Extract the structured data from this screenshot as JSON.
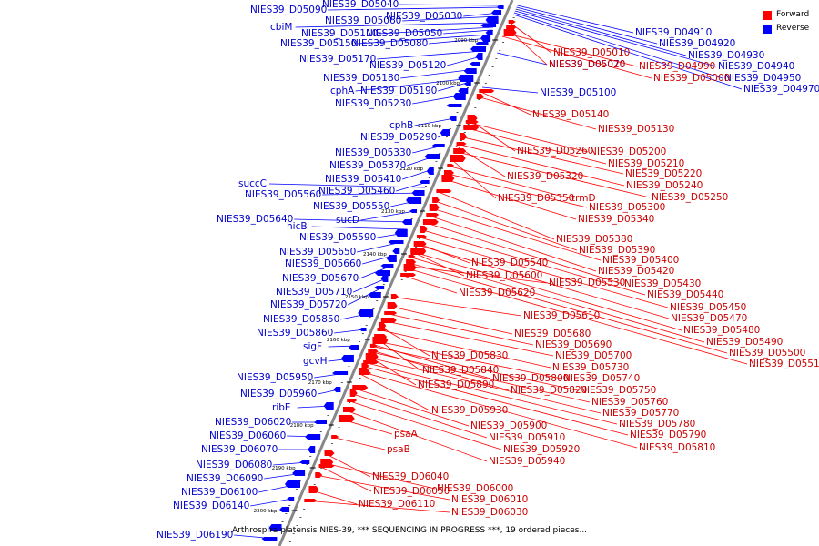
{
  "legend": {
    "forward": "Forward",
    "reverse": "Reverse",
    "forward_color": "#ff0000",
    "reverse_color": "#0000ff"
  },
  "caption": "Arthrospira platensis NIES-39, *** SEQUENCING IN PROGRESS ***, 19 ordered pieces...",
  "scale_marks": [
    "2090 kbp",
    "2100 kbp",
    "2110 kbp",
    "2120 kbp",
    "2130 kbp",
    "2140 kbp",
    "2150 kbp",
    "2160 kbp",
    "2170 kbp",
    "2180 kbp",
    "2190 kbp",
    "2200 kbp"
  ],
  "reverse_genes": [
    "NIES39_D05090",
    "NIES39_D05040",
    "NIES39_D05030",
    "NIES39_D05060",
    "cbiM",
    "NIES39_D05110",
    "NIES39_D05050",
    "NIES39_D05150",
    "NIES39_D05080",
    "NIES39_D05170",
    "NIES39_D05120",
    "NIES39_D05180",
    "cphA",
    "NIES39_D05190",
    "NIES39_D05230",
    "cphB",
    "NIES39_D05290",
    "NIES39_D05330",
    "NIES39_D05370",
    "NIES39_D05410",
    "succC",
    "NIES39_D05560",
    "NIES39_D05460",
    "NIES39_D05550",
    "sucD",
    "NIES39_D05640",
    "hicB",
    "NIES39_D05590",
    "NIES39_D05650",
    "NIES39_D05660",
    "NIES39_D05670",
    "NIES39_D05710",
    "NIES39_D05720",
    "NIES39_D05850",
    "NIES39_D05860",
    "sigF",
    "gcvH",
    "NIES39_D05950",
    "NIES39_D05960",
    "ribE",
    "NIES39_D06020",
    "NIES39_D06060",
    "NIES39_D06070",
    "NIES39_D06080",
    "NIES39_D06090",
    "NIES39_D06100",
    "NIES39_D06140",
    "NIES39_D06190",
    "NIES39_D04910",
    "NIES39_D04920",
    "NIES39_D04930",
    "NIES39_D04940",
    "NIES39_D04950",
    "NIES39_D04970",
    "NIES39_D05070",
    "NIES39_D05100"
  ],
  "forward_genes": [
    "NIES39_D05010",
    "NIES39_D05020",
    "NIES39_D04990",
    "NIES39_D05000",
    "NIES39_D05140",
    "NIES39_D05130",
    "NIES39_D05260",
    "NIES39_D05200",
    "NIES39_D05210",
    "NIES39_D05320",
    "NIES39_D05220",
    "NIES39_D05240",
    "NIES39_D05350",
    "trmD",
    "NIES39_D05250",
    "NIES39_D05300",
    "NIES39_D05340",
    "NIES39_D05380",
    "NIES39_D05390",
    "NIES39_D05540",
    "NIES39_D05400",
    "NIES39_D05600",
    "NIES39_D05420",
    "NIES39_D05530",
    "NIES39_D05430",
    "NIES39_D05620",
    "NIES39_D05440",
    "NIES39_D05450",
    "NIES39_D05610",
    "NIES39_D05470",
    "NIES39_D05680",
    "NIES39_D05480",
    "NIES39_D05690",
    "NIES39_D05490",
    "NIES39_D05830",
    "NIES39_D05700",
    "NIES39_D05500",
    "NIES39_D05510",
    "NIES39_D05730",
    "NIES39_D05840",
    "NIES39_D05800",
    "NIES39_D05740",
    "NIES39_D05890",
    "NIES39_D05820",
    "NIES39_D05750",
    "NIES39_D05760",
    "NIES39_D05930",
    "NIES39_D05770",
    "NIES39_D05900",
    "NIES39_D05780",
    "NIES39_D05910",
    "NIES39_D05790",
    "psaA",
    "NIES39_D05920",
    "NIES39_D05810",
    "psaB",
    "NIES39_D05940",
    "NIES39_D06040",
    "NIES39_D06000",
    "NIES39_D06050",
    "NIES39_D06010",
    "NIES39_D06110",
    "NIES39_D06030"
  ]
}
